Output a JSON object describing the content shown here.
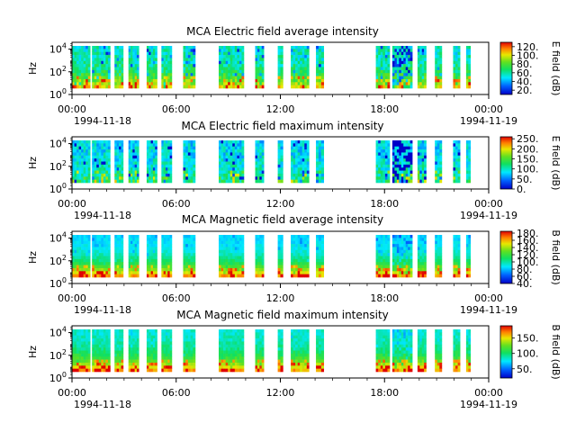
{
  "figure": {
    "time_ticks": [
      "00:00",
      "06:00",
      "12:00",
      "18:00",
      "00:00"
    ],
    "date_start": "1994-11-18",
    "date_end": "1994-11-19"
  },
  "chart_data": [
    {
      "type": "heatmap",
      "title": "MCA  Electric field average intensity",
      "ylabel": "Hz",
      "xlabel": "",
      "y_scale": "log",
      "y_tick_labels": [
        "10^0",
        "10^2",
        "10^4"
      ],
      "x_range": [
        "1994-11-18 00:00",
        "1994-11-19 00:00"
      ],
      "colorbar": {
        "label": "E field (dB)",
        "ticks": [
          "20.",
          "40.",
          "60.",
          "80.",
          "100.",
          "120."
        ],
        "range": [
          10,
          130
        ]
      },
      "colormap": "rainbow (blue-cyan-green-yellow-red)"
    },
    {
      "type": "heatmap",
      "title": "MCA  Electric field maximum intensity",
      "ylabel": "Hz",
      "xlabel": "",
      "y_scale": "log",
      "y_tick_labels": [
        "10^0",
        "10^2",
        "10^4"
      ],
      "x_range": [
        "1994-11-18 00:00",
        "1994-11-19 00:00"
      ],
      "colorbar": {
        "label": "E field (dB)",
        "ticks": [
          "0.",
          "50.",
          "100.",
          "150.",
          "200.",
          "250."
        ],
        "range": [
          0,
          260
        ]
      },
      "colormap": "rainbow (blue-cyan-green-yellow-red)"
    },
    {
      "type": "heatmap",
      "title": "MCA  Magnetic field average intensity",
      "ylabel": "Hz",
      "xlabel": "",
      "y_scale": "log",
      "y_tick_labels": [
        "10^0",
        "10^2",
        "10^4"
      ],
      "x_range": [
        "1994-11-18 00:00",
        "1994-11-19 00:00"
      ],
      "colorbar": {
        "label": "B field (dB)",
        "ticks": [
          "40.",
          "60.",
          "80.",
          "100.",
          "120.",
          "140.",
          "160.",
          "180."
        ],
        "range": [
          40,
          185
        ]
      },
      "colormap": "rainbow (blue-cyan-green-yellow-red)"
    },
    {
      "type": "heatmap",
      "title": "MCA  Magnetic field maximum intensity",
      "ylabel": "Hz",
      "xlabel": "",
      "y_scale": "log",
      "y_tick_labels": [
        "10^0",
        "10^2",
        "10^4"
      ],
      "x_range": [
        "1994-11-18 00:00",
        "1994-11-19 00:00"
      ],
      "colorbar": {
        "label": "B field (dB)",
        "ticks": [
          "50.",
          "100.",
          "150."
        ],
        "range": [
          20,
          190
        ]
      },
      "colormap": "rainbow (blue-cyan-green-yellow-red)"
    }
  ],
  "data_segments_hours": [
    [
      0.0,
      1.05
    ],
    [
      1.15,
      2.2
    ],
    [
      2.45,
      2.95
    ],
    [
      3.25,
      3.85
    ],
    [
      4.3,
      4.9
    ],
    [
      5.15,
      5.75
    ],
    [
      6.4,
      7.1
    ],
    [
      8.45,
      9.9
    ],
    [
      10.55,
      11.05
    ],
    [
      11.85,
      12.15
    ],
    [
      12.6,
      13.65
    ],
    [
      14.05,
      14.5
    ],
    [
      17.5,
      18.3
    ],
    [
      18.45,
      19.6
    ],
    [
      19.9,
      20.4
    ],
    [
      20.9,
      21.3
    ],
    [
      21.95,
      22.35
    ],
    [
      22.7,
      22.95
    ]
  ]
}
